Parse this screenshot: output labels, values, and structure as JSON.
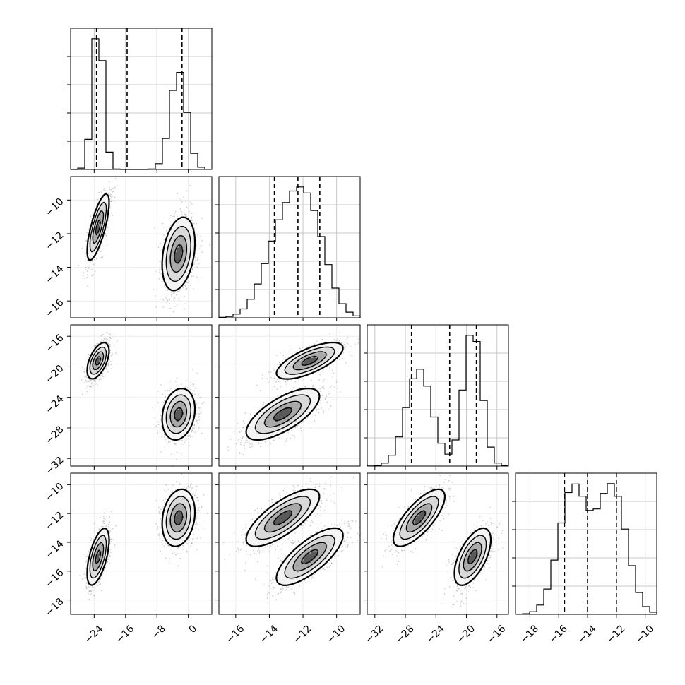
{
  "chart_data": {
    "type": "corner",
    "parameters": 4,
    "grid": true,
    "quantile_lines": "dashed",
    "colors": {
      "hist": "#000000",
      "points": "#9a9a9a",
      "contour": "#000000",
      "grid": "#c8c8c8"
    },
    "axes": [
      {
        "range": [
          -30,
          6
        ],
        "ticks": [
          -24,
          -16,
          -8,
          0
        ],
        "tick_labels": [
          "−24",
          "−16",
          "−8",
          "0"
        ],
        "quantiles": [
          -23.4,
          -15.6,
          -1.6
        ],
        "components": [
          {
            "mean": -23.0,
            "sd": 1.4,
            "weight": 0.5
          },
          {
            "mean": -2.5,
            "sd": 2.1,
            "weight": 0.5
          }
        ]
      },
      {
        "range": [
          -17,
          -8.6
        ],
        "ticks": [
          -16,
          -14,
          -12,
          -10
        ],
        "tick_labels": [
          "−16",
          "−14",
          "−12",
          "−10"
        ],
        "quantiles": [
          -13.7,
          -12.3,
          -11.0
        ],
        "components": [
          {
            "mean": -11.6,
            "sd": 1.0,
            "weight": 0.5
          },
          {
            "mean": -13.2,
            "sd": 1.1,
            "weight": 0.5
          }
        ]
      },
      {
        "range": [
          -33,
          -14.5
        ],
        "ticks": [
          -32,
          -28,
          -24,
          -20,
          -16
        ],
        "tick_labels": [
          "−32",
          "−28",
          "−24",
          "−20",
          "−16"
        ],
        "quantiles": [
          -27.2,
          -22.2,
          -18.7
        ],
        "components": [
          {
            "mean": -19.2,
            "sd": 1.2,
            "weight": 0.5
          },
          {
            "mean": -26.2,
            "sd": 1.7,
            "weight": 0.5
          }
        ]
      },
      {
        "range": [
          -19,
          -9.2
        ],
        "ticks": [
          -18,
          -16,
          -14,
          -12,
          -10
        ],
        "tick_labels": [
          "−18",
          "−16",
          "−14",
          "−12",
          "−10"
        ],
        "quantiles": [
          -15.6,
          -14.0,
          -12.0
        ],
        "components": [
          {
            "mean": -15.0,
            "sd": 1.0,
            "weight": 0.5
          },
          {
            "mean": -12.3,
            "sd": 1.0,
            "weight": 0.5
          }
        ]
      }
    ],
    "pair_panels": [
      {
        "row": 1,
        "col": 0,
        "clusters": [
          {
            "mx": -23.0,
            "my": -11.6,
            "sx": 1.4,
            "sy": 1.0,
            "rho": 0.75
          },
          {
            "mx": -2.5,
            "my": -13.2,
            "sx": 2.1,
            "sy": 1.1,
            "rho": 0.3
          }
        ]
      },
      {
        "row": 2,
        "col": 0,
        "clusters": [
          {
            "mx": -23.0,
            "my": -19.2,
            "sx": 1.4,
            "sy": 1.2,
            "rho": 0.55
          },
          {
            "mx": -2.5,
            "my": -26.2,
            "sx": 2.1,
            "sy": 1.7,
            "rho": 0.2
          }
        ]
      },
      {
        "row": 2,
        "col": 1,
        "clusters": [
          {
            "mx": -11.6,
            "my": -19.2,
            "sx": 1.0,
            "sy": 1.2,
            "rho": 0.7
          },
          {
            "mx": -13.2,
            "my": -26.2,
            "sx": 1.1,
            "sy": 1.7,
            "rho": 0.7
          }
        ]
      },
      {
        "row": 3,
        "col": 0,
        "clusters": [
          {
            "mx": -23.0,
            "my": -15.0,
            "sx": 1.4,
            "sy": 1.0,
            "rho": 0.6
          },
          {
            "mx": -2.5,
            "my": -12.3,
            "sx": 2.1,
            "sy": 1.0,
            "rho": 0.2
          }
        ]
      },
      {
        "row": 3,
        "col": 1,
        "clusters": [
          {
            "mx": -11.6,
            "my": -15.0,
            "sx": 1.0,
            "sy": 1.0,
            "rho": 0.75
          },
          {
            "mx": -13.2,
            "my": -12.3,
            "sx": 1.1,
            "sy": 1.0,
            "rho": 0.75
          }
        ]
      },
      {
        "row": 3,
        "col": 2,
        "clusters": [
          {
            "mx": -19.2,
            "my": -15.0,
            "sx": 1.2,
            "sy": 1.0,
            "rho": 0.6
          },
          {
            "mx": -26.2,
            "my": -12.3,
            "sx": 1.7,
            "sy": 1.0,
            "rho": 0.75
          }
        ]
      }
    ]
  }
}
